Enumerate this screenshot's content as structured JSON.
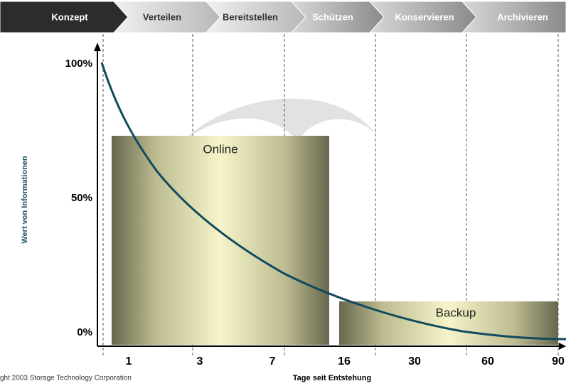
{
  "phases": [
    "Konzept",
    "Verteilen",
    "Bereitstellen",
    "Schützen",
    "Konservieren",
    "Archivieren"
  ],
  "y_axis": {
    "title": "Wert von Informationen",
    "labels": [
      "100%",
      "50%",
      "0%"
    ]
  },
  "x_axis": {
    "title": "Tage seit Entstehung",
    "labels": [
      "1",
      "3",
      "7",
      "16",
      "30",
      "60",
      "90"
    ]
  },
  "boxes": [
    "Online",
    "Backup"
  ],
  "copyright": "ght 2003 Storage Technology Corporation"
}
